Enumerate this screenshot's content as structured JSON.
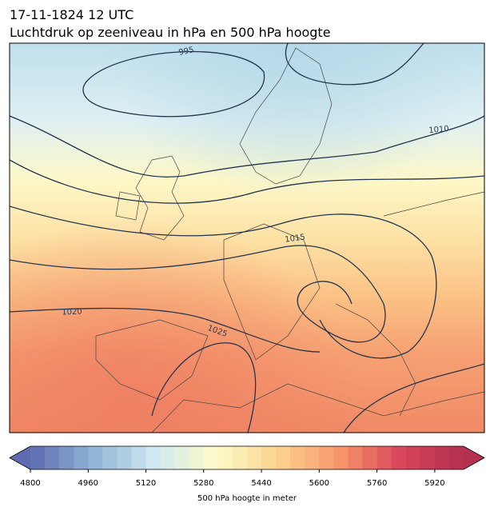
{
  "title": {
    "line1": "17-11-1824 12 UTC",
    "line2": "Luchtdruk op zeeniveau in hPa en 500 hPa hoogte"
  },
  "contour_labels": [
    995,
    1010,
    1015,
    1020,
    1025
  ],
  "colorbar": {
    "label": "500 hPa hoogte in meter",
    "lim": [
      4800,
      6000
    ],
    "ticks": [
      4800,
      4960,
      5120,
      5280,
      5440,
      5600,
      5760,
      5920
    ]
  }
}
